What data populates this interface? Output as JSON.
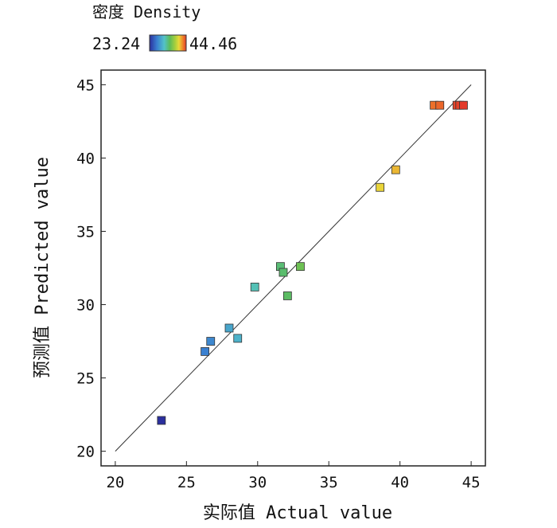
{
  "chart_data": {
    "type": "scatter",
    "xlabel": "实际值 Actual value",
    "ylabel": "预测值 Predicted value",
    "xlim": [
      19,
      46
    ],
    "ylim": [
      19,
      46
    ],
    "xticks": [
      "20",
      "25",
      "30",
      "35",
      "40",
      "45"
    ],
    "yticks": [
      "20",
      "25",
      "30",
      "35",
      "40",
      "45"
    ],
    "grid": false,
    "reference_line": {
      "from": [
        20,
        20
      ],
      "to": [
        45,
        45
      ]
    },
    "legend": {
      "title": "密度 Density",
      "min_label": "23.24",
      "max_label": "44.46",
      "min": 23.24,
      "max": 44.46,
      "placement": "top-left"
    },
    "colorscale": [
      "#2b2f9e",
      "#3a7fd0",
      "#53c2c8",
      "#5cbc5a",
      "#a8cf3c",
      "#e8d93a",
      "#f08a2a",
      "#e43a2a"
    ],
    "points": [
      {
        "x": 23.24,
        "y": 22.1
      },
      {
        "x": 26.3,
        "y": 26.8
      },
      {
        "x": 26.7,
        "y": 27.5
      },
      {
        "x": 28.0,
        "y": 28.4
      },
      {
        "x": 28.6,
        "y": 27.7
      },
      {
        "x": 29.8,
        "y": 31.2
      },
      {
        "x": 31.6,
        "y": 32.6
      },
      {
        "x": 31.8,
        "y": 32.2
      },
      {
        "x": 32.1,
        "y": 30.6
      },
      {
        "x": 33.0,
        "y": 32.6
      },
      {
        "x": 38.6,
        "y": 38.0
      },
      {
        "x": 39.7,
        "y": 39.2
      },
      {
        "x": 42.4,
        "y": 43.6
      },
      {
        "x": 42.8,
        "y": 43.6
      },
      {
        "x": 44.0,
        "y": 43.6
      },
      {
        "x": 44.2,
        "y": 43.6
      },
      {
        "x": 44.46,
        "y": 43.6
      }
    ]
  }
}
